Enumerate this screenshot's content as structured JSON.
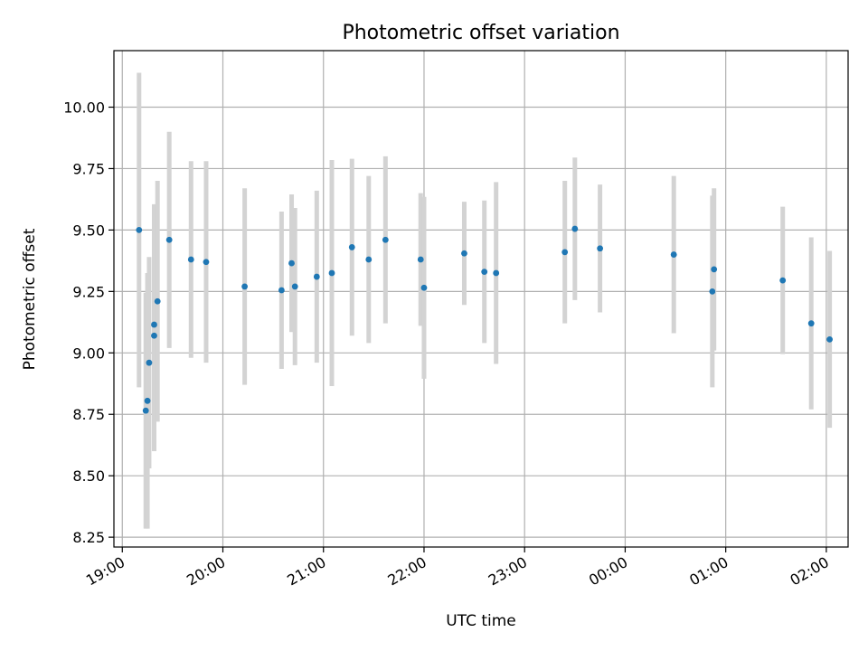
{
  "chart_data": {
    "type": "scatter",
    "title": "Photometric offset variation",
    "xlabel": "UTC time",
    "ylabel": "Photometric offset",
    "x_tick_labels": [
      "19:00",
      "20:00",
      "21:00",
      "22:00",
      "23:00",
      "00:00",
      "01:00",
      "02:00"
    ],
    "y_ticks": [
      8.25,
      8.5,
      8.75,
      9.0,
      9.25,
      9.5,
      9.75,
      10.0
    ],
    "y_tick_labels": [
      "8.25",
      "8.50",
      "8.75",
      "9.00",
      "9.25",
      "9.50",
      "9.75",
      "10.00"
    ],
    "xlim": [
      "18:55",
      "02:13"
    ],
    "ylim": [
      8.21,
      10.23
    ],
    "grid": true,
    "colors": {
      "marker": "#1f77b4",
      "errorbar": "#d3d3d3"
    },
    "points": [
      {
        "t": "19:10",
        "y": 9.5,
        "err": 0.64
      },
      {
        "t": "19:14",
        "y": 8.765,
        "err": 0.48
      },
      {
        "t": "19:15",
        "y": 8.805,
        "err": 0.52
      },
      {
        "t": "19:16",
        "y": 8.96,
        "err": 0.43
      },
      {
        "t": "19:19",
        "y": 9.07,
        "err": 0.47
      },
      {
        "t": "19:19",
        "y": 9.115,
        "err": 0.49
      },
      {
        "t": "19:21",
        "y": 9.21,
        "err": 0.49
      },
      {
        "t": "19:28",
        "y": 9.46,
        "err": 0.44
      },
      {
        "t": "19:41",
        "y": 9.38,
        "err": 0.4
      },
      {
        "t": "19:50",
        "y": 9.37,
        "err": 0.41
      },
      {
        "t": "20:13",
        "y": 9.27,
        "err": 0.4
      },
      {
        "t": "20:35",
        "y": 9.255,
        "err": 0.32
      },
      {
        "t": "20:41",
        "y": 9.365,
        "err": 0.28
      },
      {
        "t": "20:43",
        "y": 9.27,
        "err": 0.32
      },
      {
        "t": "20:56",
        "y": 9.31,
        "err": 0.35
      },
      {
        "t": "21:05",
        "y": 9.325,
        "err": 0.46
      },
      {
        "t": "21:17",
        "y": 9.43,
        "err": 0.36
      },
      {
        "t": "21:27",
        "y": 9.38,
        "err": 0.34
      },
      {
        "t": "21:37",
        "y": 9.46,
        "err": 0.34
      },
      {
        "t": "21:58",
        "y": 9.38,
        "err": 0.27
      },
      {
        "t": "22:00",
        "y": 9.265,
        "err": 0.37
      },
      {
        "t": "22:24",
        "y": 9.405,
        "err": 0.21
      },
      {
        "t": "22:36",
        "y": 9.33,
        "err": 0.29
      },
      {
        "t": "22:43",
        "y": 9.325,
        "err": 0.37
      },
      {
        "t": "23:24",
        "y": 9.41,
        "err": 0.29
      },
      {
        "t": "23:30",
        "y": 9.505,
        "err": 0.29
      },
      {
        "t": "23:45",
        "y": 9.425,
        "err": 0.26
      },
      {
        "t": "00:29",
        "y": 9.4,
        "err": 0.32
      },
      {
        "t": "00:52",
        "y": 9.25,
        "err": 0.39
      },
      {
        "t": "00:53",
        "y": 9.34,
        "err": 0.33
      },
      {
        "t": "01:34",
        "y": 9.295,
        "err": 0.3
      },
      {
        "t": "01:51",
        "y": 9.12,
        "err": 0.35
      },
      {
        "t": "02:02",
        "y": 9.055,
        "err": 0.36
      }
    ]
  }
}
